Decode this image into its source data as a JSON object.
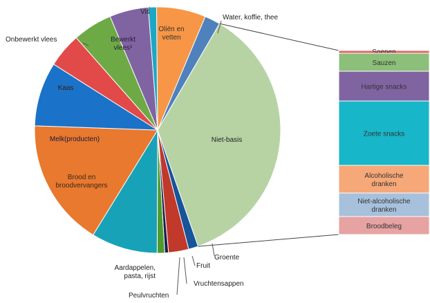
{
  "chart_data": {
    "type": "pie",
    "slices": [
      {
        "label": "Oliën en vetten",
        "value": 6.6,
        "color": "#f79646"
      },
      {
        "label": "Water, koffie, thee",
        "value": 2.1,
        "color": "#4f81bd"
      },
      {
        "label": "Niet-basis",
        "value": 37.0,
        "color": "#b7d3a4"
      },
      {
        "label": "Groente",
        "value": 1.3,
        "color": "#17549a"
      },
      {
        "label": "Fruit",
        "value": 2.7,
        "color": "#c0392b"
      },
      {
        "label": "Vruchtensappen",
        "value": 0.5,
        "color": "#1f1f4f"
      },
      {
        "label": "Peulvruchten",
        "value": 1.0,
        "color": "#4e9a2e"
      },
      {
        "label": "Aardappelen, pasta, rijst",
        "value": 8.9,
        "color": "#17a2b8"
      },
      {
        "label": "Brood en broodvervangers",
        "value": 17.1,
        "color": "#e8792f"
      },
      {
        "label": "Melk(producten)",
        "value": 8.6,
        "color": "#1a73c8"
      },
      {
        "label": "Kaas",
        "value": 4.6,
        "color": "#e24a4a"
      },
      {
        "label": "Onbewerkt vlees",
        "value": 5.3,
        "color": "#6daa45"
      },
      {
        "label": "Bewerkt vlees¹",
        "value": 5.2,
        "color": "#8064a2"
      },
      {
        "label": "Vis",
        "value": 1.1,
        "color": "#1ea7c4"
      }
    ],
    "breakdown": {
      "of": "Niet-basis",
      "items": [
        {
          "label": "Soepen",
          "value": 0.4,
          "color": "#e06666"
        },
        {
          "label": "Sauzen",
          "value": 2.6,
          "color": "#8cbf7a"
        },
        {
          "label": "Hartige snacks",
          "value": 4.3,
          "color": "#8064a2"
        },
        {
          "label": "Zoete snacks",
          "value": 9.3,
          "color": "#17b6c9"
        },
        {
          "label": "Alcoholische dranken",
          "value": 4.0,
          "color": "#f6a878"
        },
        {
          "label": "Niet-alcoholische dranken",
          "value": 3.4,
          "color": "#a7c1dc"
        },
        {
          "label": "Broodbeleg",
          "value": 2.6,
          "color": "#e7a2a2"
        }
      ]
    }
  }
}
